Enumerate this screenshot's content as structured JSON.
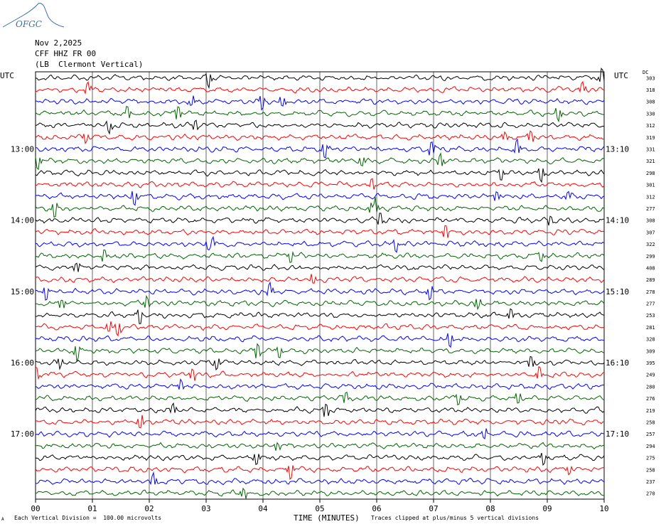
{
  "header": {
    "logo_text": "OFGC",
    "date": "Nov 2,2025",
    "station": "CFF HHZ FR 00",
    "location": "(LB  Clermont Vertical)"
  },
  "labels": {
    "utc_left": "UTC",
    "utc_right": "UTC",
    "dc": "DC"
  },
  "footer": {
    "mark": "A",
    "scale": "Each Vertical Division =  100.00 microvolts",
    "clip": "Traces clipped at plus/minus 5 vertical divisions"
  },
  "colors": {
    "trace_cycle": [
      "#000000",
      "#ff0000",
      "#0000ff",
      "#006400"
    ],
    "logo": "#3a6ea8",
    "grid": "#000000"
  },
  "chart_data": {
    "type": "line",
    "title": "",
    "xlabel": "TIME (MINUTES)",
    "ylabel": "",
    "x_ticks": [
      "00",
      "01",
      "02",
      "03",
      "04",
      "05",
      "06",
      "07",
      "08",
      "09",
      "10"
    ],
    "xlim": [
      0,
      10
    ],
    "row_count": 36,
    "rows_per_hour": 6,
    "grid": "vertical",
    "left_time_labels": [
      {
        "row": 6,
        "label": "13:00"
      },
      {
        "row": 12,
        "label": "14:00"
      },
      {
        "row": 18,
        "label": "15:00"
      },
      {
        "row": 24,
        "label": "16:00"
      },
      {
        "row": 30,
        "label": "17:00"
      }
    ],
    "right_time_labels": [
      {
        "row": 6,
        "label": "13:10"
      },
      {
        "row": 12,
        "label": "14:10"
      },
      {
        "row": 18,
        "label": "15:10"
      },
      {
        "row": 24,
        "label": "16:10"
      },
      {
        "row": 30,
        "label": "17:10"
      }
    ],
    "dc_offsets": [
      303,
      318,
      308,
      330,
      312,
      319,
      331,
      321,
      298,
      301,
      312,
      277,
      308,
      307,
      322,
      299,
      408,
      289,
      278,
      277,
      253,
      281,
      328,
      309,
      395,
      249,
      280,
      276,
      219,
      258,
      257,
      294,
      275,
      258,
      237,
      270
    ]
  }
}
